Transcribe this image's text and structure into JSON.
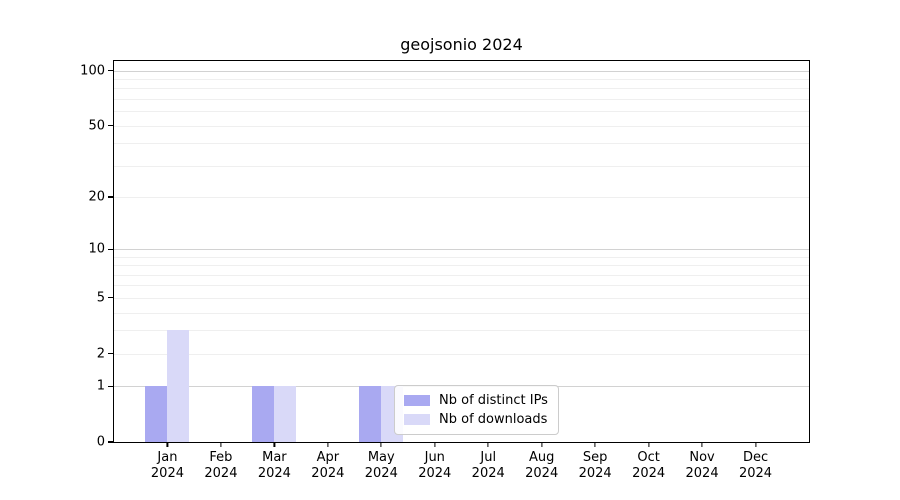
{
  "chart_data": {
    "type": "bar",
    "title": "geojsonio 2024",
    "categories": [
      "Jan",
      "Feb",
      "Mar",
      "Apr",
      "May",
      "Jun",
      "Jul",
      "Aug",
      "Sep",
      "Oct",
      "Nov",
      "Dec"
    ],
    "x_year": "2024",
    "series": [
      {
        "name": "Nb of distinct IPs",
        "color": "#a9a9f1",
        "values": [
          1,
          0,
          1,
          0,
          1,
          0,
          0,
          0,
          0,
          0,
          0,
          0
        ]
      },
      {
        "name": "Nb of downloads",
        "color": "#d9d9f8",
        "values": [
          3,
          0,
          1,
          0,
          1,
          0,
          0,
          0,
          0,
          0,
          0,
          0
        ]
      }
    ],
    "y_scale": "log1p",
    "y_ticks": [
      0,
      1,
      2,
      5,
      10,
      20,
      50,
      100
    ],
    "y_major_gridlines": [
      1,
      10,
      100
    ],
    "y_minor_gridlines": [
      2,
      3,
      4,
      5,
      6,
      7,
      8,
      9,
      20,
      30,
      40,
      50,
      60,
      70,
      80,
      90
    ],
    "ylim": [
      0,
      113
    ],
    "grid": true,
    "legend_position": "lower center"
  },
  "colors": {
    "axis": "#000000",
    "grid_major": "#d2d2d2",
    "grid_minor": "#efefef",
    "legend_border": "#cccccc",
    "text": "#000000"
  }
}
